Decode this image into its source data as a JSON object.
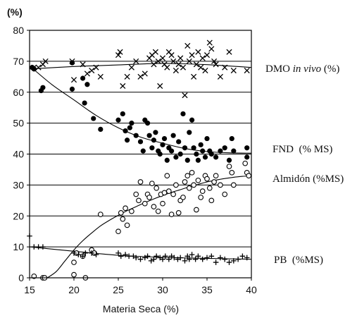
{
  "chart_data": {
    "type": "scatter",
    "title": "",
    "y_unit": "(%)",
    "xlabel": "Materia Seca (%)",
    "ylabel": "",
    "xlim": [
      15,
      40
    ],
    "ylim": [
      0,
      80
    ],
    "x_ticks": [
      15,
      20,
      25,
      30,
      35,
      40
    ],
    "y_ticks": [
      0,
      10,
      20,
      30,
      40,
      50,
      60,
      70,
      80
    ],
    "grid": true,
    "legend": "right, labels beside each series",
    "series": [
      {
        "name": "DMO in vivo (%)",
        "name_main": "DMO ",
        "name_italic": "in vivo",
        "name_tail": " (%)",
        "marker": "x",
        "points": [
          [
            15.5,
            68
          ],
          [
            16,
            68
          ],
          [
            16.5,
            69
          ],
          [
            16.8,
            70
          ],
          [
            19.8,
            70
          ],
          [
            20,
            64
          ],
          [
            21,
            69
          ],
          [
            21.5,
            66
          ],
          [
            22,
            67
          ],
          [
            22.5,
            68
          ],
          [
            23,
            65
          ],
          [
            25,
            72
          ],
          [
            25.2,
            73
          ],
          [
            25.5,
            62
          ],
          [
            26,
            65
          ],
          [
            26.5,
            68
          ],
          [
            27,
            70
          ],
          [
            27.5,
            65
          ],
          [
            28,
            66
          ],
          [
            28.5,
            71
          ],
          [
            28.8,
            72
          ],
          [
            29,
            69
          ],
          [
            29.2,
            73
          ],
          [
            29.5,
            70
          ],
          [
            29.7,
            62
          ],
          [
            30,
            71
          ],
          [
            30.2,
            69
          ],
          [
            30.5,
            68
          ],
          [
            30.7,
            73
          ],
          [
            31,
            72
          ],
          [
            31.2,
            70
          ],
          [
            31.5,
            67
          ],
          [
            31.8,
            69
          ],
          [
            32,
            71
          ],
          [
            32.3,
            68
          ],
          [
            32.5,
            59
          ],
          [
            32.8,
            75
          ],
          [
            33,
            70
          ],
          [
            33.3,
            72
          ],
          [
            33.5,
            65
          ],
          [
            33.8,
            69
          ],
          [
            34,
            73
          ],
          [
            34.3,
            68
          ],
          [
            34.5,
            71
          ],
          [
            34.8,
            67
          ],
          [
            35,
            72
          ],
          [
            35.3,
            76
          ],
          [
            35.5,
            74
          ],
          [
            35.8,
            70
          ],
          [
            36,
            69
          ],
          [
            36.5,
            65
          ],
          [
            37,
            68
          ],
          [
            37.5,
            73
          ],
          [
            38,
            67
          ],
          [
            39.5,
            67
          ]
        ],
        "fit": [
          [
            15,
            67.5
          ],
          [
            20,
            68.3
          ],
          [
            25,
            68.8
          ],
          [
            30,
            69.3
          ],
          [
            35,
            68.9
          ],
          [
            40,
            68
          ]
        ]
      },
      {
        "name": "FND  (% MS)",
        "marker": "filled-circle",
        "points": [
          [
            15.3,
            68
          ],
          [
            15.5,
            67.5
          ],
          [
            16.3,
            60.5
          ],
          [
            16.5,
            61.5
          ],
          [
            19.8,
            69.5
          ],
          [
            19.8,
            61
          ],
          [
            21,
            64.5
          ],
          [
            21.2,
            56.5
          ],
          [
            21.5,
            62.5
          ],
          [
            22.2,
            51.5
          ],
          [
            23,
            48
          ],
          [
            25,
            51
          ],
          [
            25.5,
            53
          ],
          [
            25.8,
            47.5
          ],
          [
            26,
            44.5
          ],
          [
            26.3,
            48.5
          ],
          [
            26.5,
            50
          ],
          [
            27,
            46
          ],
          [
            27.5,
            44
          ],
          [
            27.8,
            41
          ],
          [
            28,
            51
          ],
          [
            28.3,
            50
          ],
          [
            28.5,
            46
          ],
          [
            28.8,
            42
          ],
          [
            29,
            44.5
          ],
          [
            29.2,
            47
          ],
          [
            29.5,
            41
          ],
          [
            29.7,
            40
          ],
          [
            30,
            43
          ],
          [
            30.2,
            45
          ],
          [
            30.5,
            38
          ],
          [
            30.7,
            42
          ],
          [
            31,
            41
          ],
          [
            31.2,
            46
          ],
          [
            31.5,
            39
          ],
          [
            31.8,
            44
          ],
          [
            32,
            40
          ],
          [
            32.3,
            53
          ],
          [
            32.5,
            42
          ],
          [
            32.8,
            38
          ],
          [
            33,
            47
          ],
          [
            33.3,
            51
          ],
          [
            33.5,
            42
          ],
          [
            33.8,
            40
          ],
          [
            34,
            38
          ],
          [
            34.3,
            43
          ],
          [
            34.5,
            41
          ],
          [
            34.8,
            39
          ],
          [
            35,
            45
          ],
          [
            35.3,
            41
          ],
          [
            35.5,
            40
          ],
          [
            36,
            39
          ],
          [
            36.5,
            41
          ],
          [
            37,
            42
          ],
          [
            37.5,
            38
          ],
          [
            37.8,
            45
          ],
          [
            38,
            41
          ],
          [
            39.5,
            42
          ],
          [
            39.5,
            39
          ]
        ],
        "fit": [
          [
            15,
            68.5
          ],
          [
            17.5,
            62.5
          ],
          [
            20,
            57.5
          ],
          [
            22.5,
            52.5
          ],
          [
            25,
            48.5
          ],
          [
            27.5,
            45.5
          ],
          [
            30,
            43.5
          ],
          [
            32.5,
            41.8
          ],
          [
            35,
            40.8
          ],
          [
            37.5,
            40.4
          ],
          [
            40,
            40.3
          ]
        ]
      },
      {
        "name": "Almidón (%MS)",
        "marker": "open-circle",
        "points": [
          [
            15.5,
            0.5
          ],
          [
            16.5,
            0
          ],
          [
            16.7,
            0
          ],
          [
            20,
            5
          ],
          [
            20,
            1
          ],
          [
            20.3,
            8
          ],
          [
            21,
            7
          ],
          [
            21.3,
            0
          ],
          [
            22,
            9
          ],
          [
            22.3,
            8
          ],
          [
            23,
            20.5
          ],
          [
            25,
            15
          ],
          [
            25.3,
            21
          ],
          [
            25.5,
            19
          ],
          [
            25.8,
            22.5
          ],
          [
            26,
            17
          ],
          [
            26.5,
            21.5
          ],
          [
            27,
            27
          ],
          [
            27.3,
            25
          ],
          [
            27.5,
            31
          ],
          [
            28,
            24
          ],
          [
            28.3,
            27
          ],
          [
            28.5,
            26
          ],
          [
            28.8,
            30.5
          ],
          [
            29,
            23
          ],
          [
            29.3,
            29
          ],
          [
            29.5,
            21.5
          ],
          [
            29.8,
            27
          ],
          [
            30,
            24
          ],
          [
            30.2,
            27.5
          ],
          [
            30.5,
            33
          ],
          [
            30.7,
            28
          ],
          [
            31,
            20.5
          ],
          [
            31.2,
            27
          ],
          [
            31.5,
            30
          ],
          [
            31.8,
            21
          ],
          [
            32,
            25
          ],
          [
            32.3,
            26
          ],
          [
            32.5,
            31
          ],
          [
            32.8,
            33
          ],
          [
            33,
            29
          ],
          [
            33.3,
            34
          ],
          [
            33.5,
            30
          ],
          [
            33.8,
            22
          ],
          [
            34,
            31.5
          ],
          [
            34.3,
            26
          ],
          [
            34.5,
            28
          ],
          [
            34.8,
            33
          ],
          [
            35,
            32
          ],
          [
            35.3,
            29
          ],
          [
            35.5,
            25
          ],
          [
            35.8,
            31
          ],
          [
            36,
            33
          ],
          [
            36.5,
            30
          ],
          [
            37,
            27
          ],
          [
            37.5,
            36
          ],
          [
            37.8,
            34
          ],
          [
            38,
            30
          ],
          [
            39.3,
            37
          ],
          [
            39.5,
            34
          ],
          [
            39.7,
            33
          ]
        ],
        "fit": [
          [
            17,
            0
          ],
          [
            18,
            2
          ],
          [
            19,
            5.5
          ],
          [
            20,
            9
          ],
          [
            21,
            12
          ],
          [
            22,
            14.5
          ],
          [
            23,
            16.8
          ],
          [
            24,
            18.6
          ],
          [
            25,
            20.2
          ],
          [
            26,
            21.7
          ],
          [
            27,
            23
          ],
          [
            28,
            24.3
          ],
          [
            29,
            25.5
          ],
          [
            30,
            26.6
          ],
          [
            31,
            27.6
          ],
          [
            32,
            28.5
          ],
          [
            33,
            29.4
          ],
          [
            34,
            30.2
          ],
          [
            35,
            31
          ],
          [
            36,
            31.6
          ],
          [
            37,
            32.1
          ],
          [
            38,
            32.5
          ],
          [
            39,
            32.8
          ],
          [
            40,
            33
          ]
        ]
      },
      {
        "name": "PB  (%MS)",
        "marker": "plus",
        "points": [
          [
            15,
            13.5
          ],
          [
            15.5,
            10
          ],
          [
            16,
            10
          ],
          [
            16.5,
            10
          ],
          [
            20,
            8
          ],
          [
            20.5,
            7.5
          ],
          [
            21,
            7
          ],
          [
            21.3,
            8
          ],
          [
            22,
            8
          ],
          [
            22.5,
            7.5
          ],
          [
            25,
            8
          ],
          [
            25.3,
            7
          ],
          [
            25.8,
            7.5
          ],
          [
            26.2,
            7
          ],
          [
            26.7,
            7
          ],
          [
            27,
            6.5
          ],
          [
            27.5,
            6
          ],
          [
            28,
            6.5
          ],
          [
            28.3,
            7
          ],
          [
            28.7,
            5.5
          ],
          [
            29,
            6
          ],
          [
            29.3,
            7
          ],
          [
            29.7,
            6.5
          ],
          [
            30,
            6
          ],
          [
            30.3,
            7
          ],
          [
            30.7,
            6
          ],
          [
            31,
            7
          ],
          [
            31.3,
            6.5
          ],
          [
            31.7,
            6
          ],
          [
            32,
            6.5
          ],
          [
            32.5,
            5.5
          ],
          [
            32.8,
            7
          ],
          [
            33,
            6
          ],
          [
            33.3,
            7.5
          ],
          [
            33.7,
            6
          ],
          [
            34,
            7
          ],
          [
            34.5,
            6
          ],
          [
            35,
            6.5
          ],
          [
            35.5,
            7
          ],
          [
            36,
            5
          ],
          [
            36.5,
            6.5
          ],
          [
            37,
            6
          ],
          [
            37.5,
            5
          ],
          [
            38,
            5.5
          ],
          [
            38.5,
            6
          ],
          [
            39,
            7
          ],
          [
            39.5,
            6.5
          ]
        ],
        "fit": [
          [
            15,
            10
          ],
          [
            20,
            8.6
          ],
          [
            25,
            7.3
          ],
          [
            30,
            6.6
          ],
          [
            35,
            6.3
          ],
          [
            40,
            6
          ]
        ]
      }
    ]
  }
}
